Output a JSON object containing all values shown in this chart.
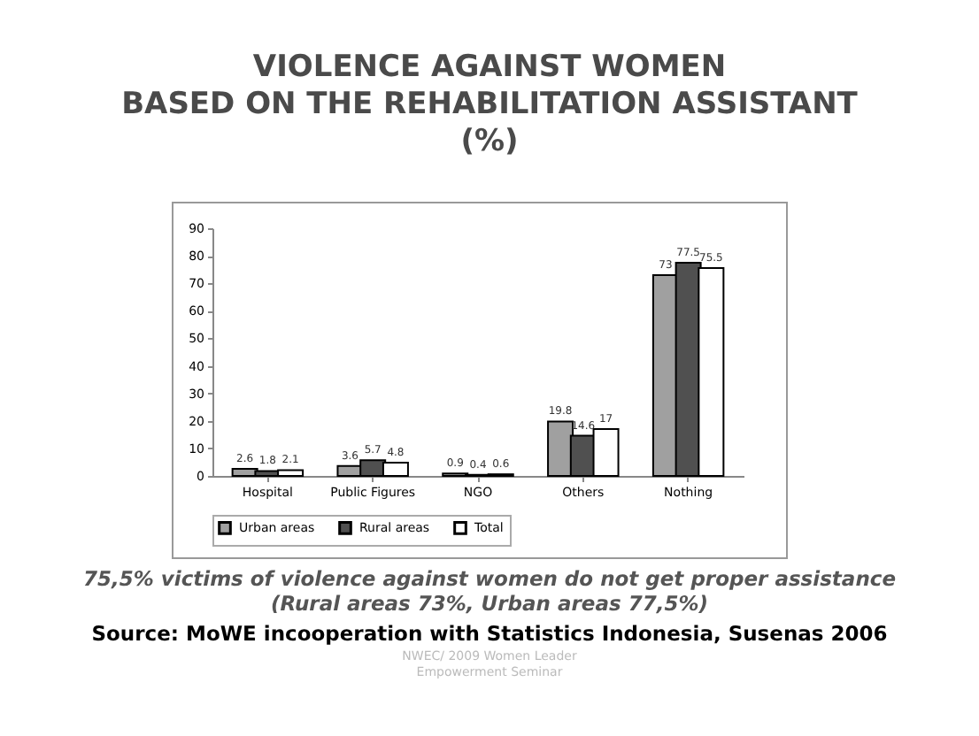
{
  "chart_data": {
    "type": "bar",
    "title": "VIOLENCE AGAINST WOMEN\nBASED ON THE REHABILITATION ASSISTANT\n(%)",
    "categories": [
      "Hospital",
      "Public Figures",
      "NGO",
      "Others",
      "Nothing"
    ],
    "series": [
      {
        "name": "Urban areas",
        "color": "#a0a0a0",
        "values": [
          2.6,
          3.6,
          0.9,
          19.8,
          73
        ]
      },
      {
        "name": "Rural areas",
        "color": "#505050",
        "values": [
          1.8,
          5.7,
          0.4,
          14.6,
          77.5
        ]
      },
      {
        "name": "Total",
        "color": "#ffffff",
        "values": [
          2.1,
          4.8,
          0.6,
          17,
          75.5
        ]
      }
    ],
    "ylim": [
      0,
      90
    ],
    "yticks": [
      0,
      10,
      20,
      30,
      40,
      50,
      60,
      70,
      80,
      90
    ],
    "grid": false,
    "legend": "bottom",
    "data_labels": true,
    "annotations": [
      "75,5% victims of violence against women do not get proper assistance\n(Rural areas 73%, Urban areas 77,5%)",
      "Source: MoWE incooperation with Statistics Indonesia, Susenas 2006",
      "NWEC/ 2009 Women Leader\nEmpowerment Seminar"
    ]
  }
}
